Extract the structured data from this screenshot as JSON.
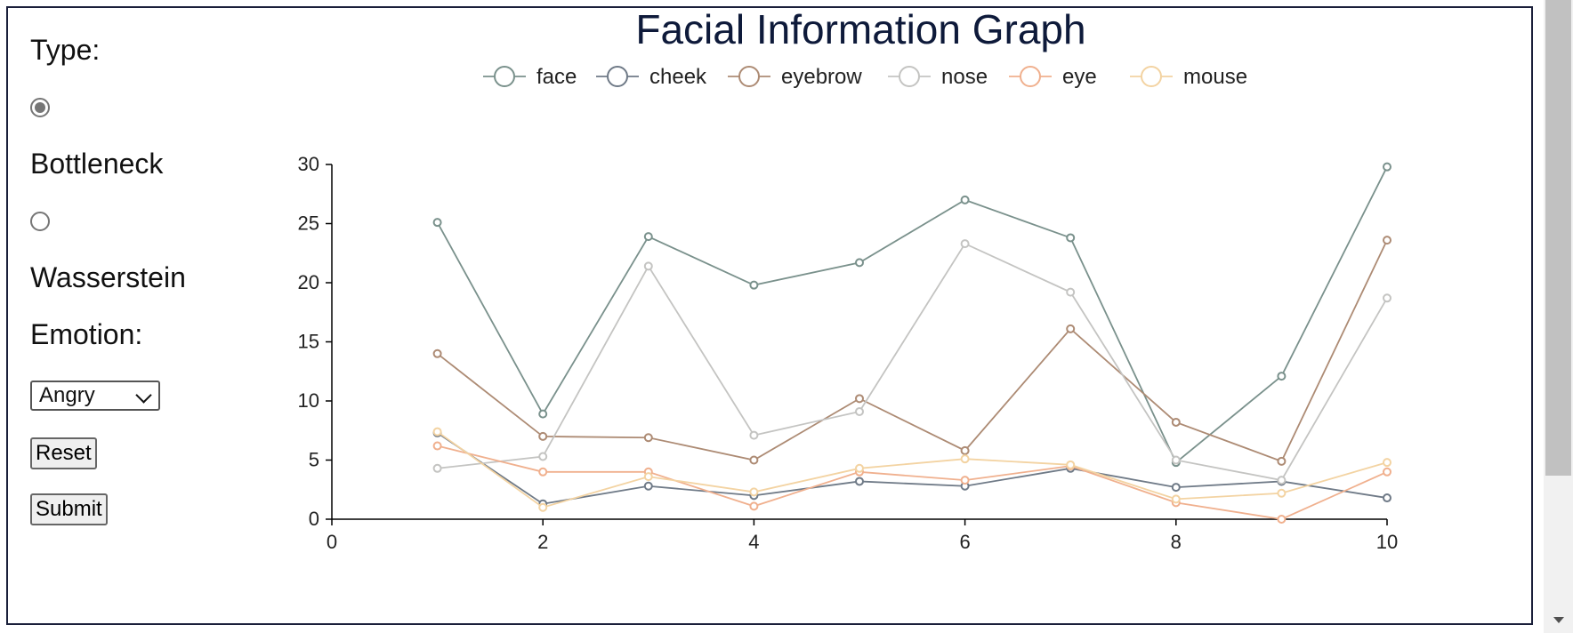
{
  "controls": {
    "type_label": "Type:",
    "options": [
      {
        "label": "Bottleneck",
        "checked": true
      },
      {
        "label": "Wasserstein",
        "checked": false
      }
    ],
    "emotion_label": "Emotion:",
    "emotion_selected": "Angry",
    "reset_label": "Reset",
    "submit_label": "Submit"
  },
  "chart_data": {
    "type": "line",
    "title": "Facial Information Graph",
    "x": [
      1,
      2,
      3,
      4,
      5,
      6,
      7,
      8,
      9,
      10
    ],
    "xlim": [
      0,
      10
    ],
    "ylim": [
      0,
      30
    ],
    "xticks": [
      0,
      2,
      4,
      6,
      8,
      10
    ],
    "yticks": [
      0,
      5,
      10,
      15,
      20,
      25,
      30
    ],
    "grid": false,
    "legend_position": "top",
    "series": [
      {
        "name": "face",
        "color": "#7a918c",
        "values": [
          25.1,
          8.9,
          23.9,
          19.8,
          21.7,
          27.0,
          23.8,
          4.8,
          12.1,
          29.8
        ]
      },
      {
        "name": "cheek",
        "color": "#6f7a87",
        "values": [
          7.3,
          1.3,
          2.8,
          2.0,
          3.2,
          2.8,
          4.3,
          2.7,
          3.2,
          1.8
        ]
      },
      {
        "name": "eyebrow",
        "color": "#ad8b74",
        "values": [
          14.0,
          7.0,
          6.9,
          5.0,
          10.2,
          5.8,
          16.1,
          8.2,
          4.9,
          23.6
        ]
      },
      {
        "name": "nose",
        "color": "#c4c4c2",
        "values": [
          4.3,
          5.3,
          21.4,
          7.1,
          9.1,
          23.3,
          19.2,
          5.0,
          3.3,
          18.7
        ]
      },
      {
        "name": "eye",
        "color": "#f0b08e",
        "values": [
          6.2,
          4.0,
          4.0,
          1.1,
          4.0,
          3.3,
          4.5,
          1.4,
          0.0,
          4.0
        ]
      },
      {
        "name": "mouse",
        "color": "#f3d3a2",
        "values": [
          7.4,
          1.0,
          3.6,
          2.3,
          4.3,
          5.1,
          4.6,
          1.7,
          2.2,
          4.8
        ]
      }
    ]
  }
}
